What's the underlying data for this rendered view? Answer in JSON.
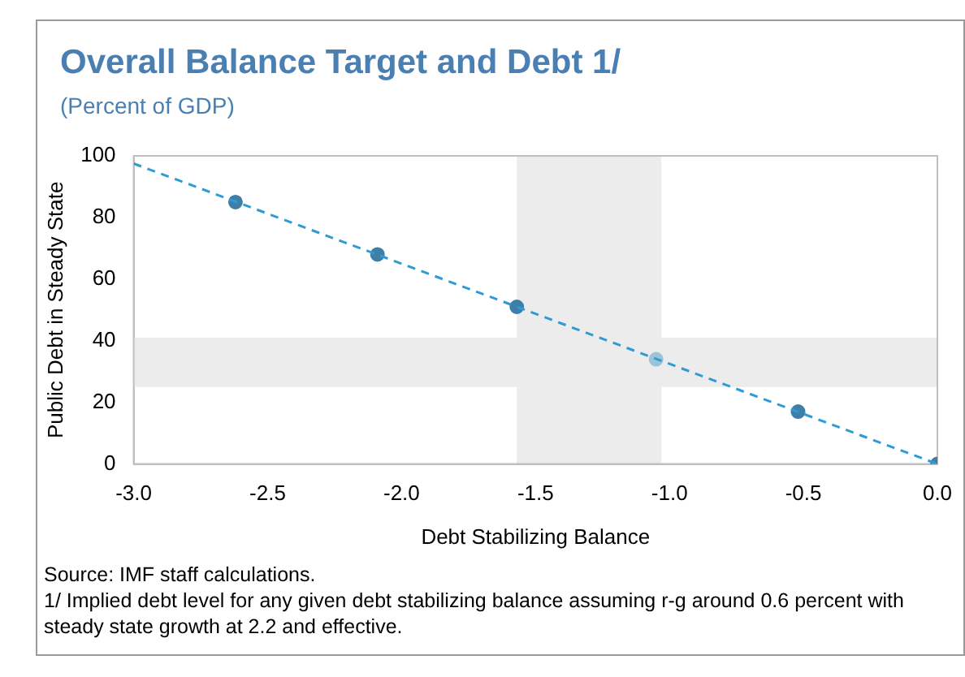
{
  "chart_data": {
    "type": "scatter",
    "title": "Overall Balance Target and Debt 1/",
    "subtitle": "(Percent of GDP)",
    "xlabel": "Debt Stabilizing Balance",
    "ylabel": "Public Debt in Steady State",
    "annotations": [
      "Source: IMF staff calculations.",
      "1/ Implied debt level for any given debt stabilizing balance assuming r-g around 0.6 percent with steady state growth at 2.2 and effective."
    ],
    "series": [
      {
        "type": "line",
        "x": [
          -3.0,
          0.0
        ],
        "values": [
          97.5,
          0
        ],
        "color": "#2e9bd6",
        "line_style": "dashed",
        "marker": "none"
      },
      {
        "type": "scatter",
        "x": [
          -2.62,
          -2.09,
          -1.57,
          -1.05,
          -0.52,
          0.0
        ],
        "values": [
          85,
          68,
          51,
          34,
          17,
          0
        ],
        "colors": [
          "#3d7fa6",
          "#3d7fa6",
          "#3d7fa6",
          "#9cc3d8",
          "#3d7fa6",
          "#3d7fa6"
        ],
        "marker": "circle"
      }
    ],
    "xlim": [
      -3,
      0
    ],
    "xticks": [
      {
        "value": -3,
        "label": "-3.0"
      },
      {
        "value": -2.5,
        "label": "-2.5"
      },
      {
        "value": -2,
        "label": "-2.0"
      },
      {
        "value": -1.5,
        "label": "-1.5"
      },
      {
        "value": -1,
        "label": "-1.0"
      },
      {
        "value": -0.5,
        "label": "-0.5"
      },
      {
        "value": 0,
        "label": "0.0"
      }
    ],
    "ylim": [
      0,
      100
    ],
    "yticks": [
      0,
      20,
      40,
      60,
      80,
      100
    ],
    "bands": [
      {
        "axis": "x",
        "from": -1.57,
        "to": -1.03,
        "color": "#ececec"
      },
      {
        "axis": "y",
        "from": 25,
        "to": 41,
        "color": "#ececec"
      }
    ],
    "grid": false,
    "legend": false
  }
}
